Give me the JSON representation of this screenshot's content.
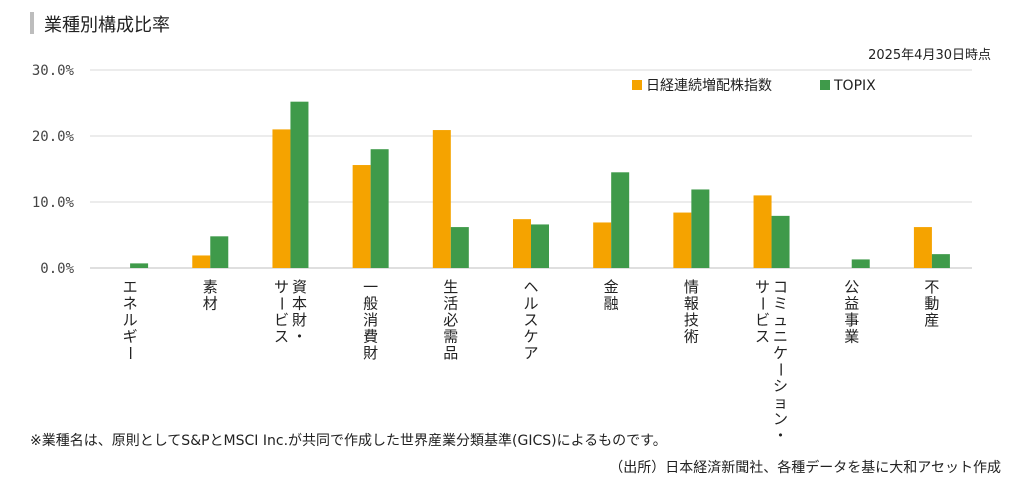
{
  "header": {
    "title": "業種別構成比率",
    "date": "2025年4月30日時点"
  },
  "chart_data": {
    "type": "bar",
    "title": "業種別構成比率",
    "ylim": [
      0,
      30
    ],
    "yticks": [
      "0.0%",
      "10.0%",
      "20.0%",
      "30.0%"
    ],
    "ytick_values": [
      0,
      10,
      20,
      30
    ],
    "grid": true,
    "legend_position": "top-right",
    "categories": [
      [
        "エネルギー"
      ],
      [
        "素材"
      ],
      [
        "資本財・",
        "サービス"
      ],
      [
        "一般消費財"
      ],
      [
        "生活必需品"
      ],
      [
        "ヘルスケア"
      ],
      [
        "金融"
      ],
      [
        "情報技術"
      ],
      [
        "コミュニケーション・",
        "サービス"
      ],
      [
        "公益事業"
      ],
      [
        "不動産"
      ]
    ],
    "series": [
      {
        "name": "日経連続増配株指数",
        "color": "#f5a300",
        "values": [
          0.0,
          1.9,
          21.0,
          15.6,
          20.9,
          7.4,
          6.9,
          8.4,
          11.0,
          0.0,
          6.2
        ]
      },
      {
        "name": "TOPIX",
        "color": "#3f9a4a",
        "values": [
          0.7,
          4.8,
          25.2,
          18.0,
          6.2,
          6.6,
          14.5,
          11.9,
          7.9,
          1.3,
          2.1
        ]
      }
    ]
  },
  "footer": {
    "note": "※業種名は、原則としてS&PとMSCI Inc.が共同で作成した世界産業分類基準(GICS)によるものです。",
    "source": "（出所）日本経済新聞社、各種データを基に大和アセット作成"
  }
}
